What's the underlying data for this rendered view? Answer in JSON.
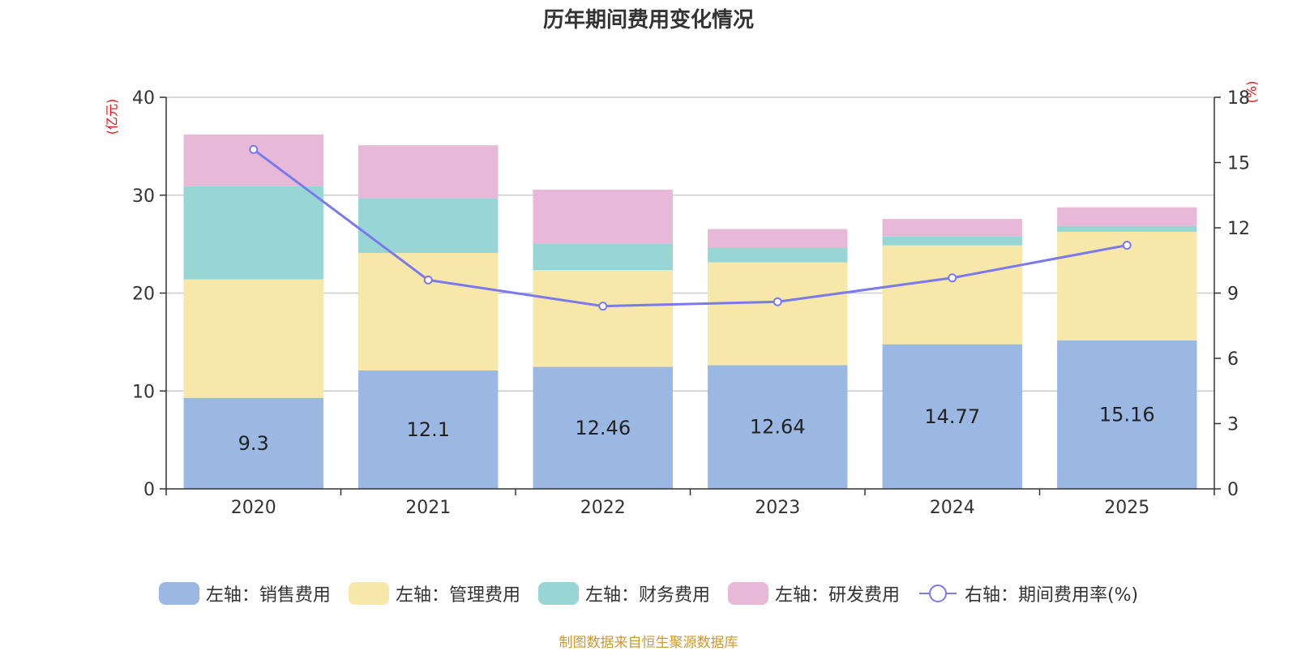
{
  "title": "历年期间费用变化情况",
  "left_unit": "(亿元)",
  "right_unit": "(%)",
  "source": "制图数据来自恒生聚源数据库",
  "colors": {
    "sales": "#9bb8e2",
    "admin": "#f7e7a8",
    "finance": "#98d5d5",
    "rd": "#e7b8d8",
    "rate": "#7a7aee",
    "grid": "#cccccc",
    "axis": "#333333"
  },
  "legend": [
    {
      "label": "左轴：销售费用",
      "color": "#9bb8e2",
      "kind": "bar"
    },
    {
      "label": "左轴：管理费用",
      "color": "#f7e7a8",
      "kind": "bar"
    },
    {
      "label": "左轴：财务费用",
      "color": "#98d5d5",
      "kind": "bar"
    },
    {
      "label": "左轴：研发费用",
      "color": "#e7b8d8",
      "kind": "bar"
    },
    {
      "label": "右轴：期间费用率(%)",
      "color": "#7a7aee",
      "kind": "line"
    }
  ],
  "chart_data": {
    "type": "bar",
    "stacked": true,
    "title": "历年期间费用变化情况",
    "categories": [
      "2020",
      "2021",
      "2022",
      "2023",
      "2024",
      "2025"
    ],
    "series": [
      {
        "name": "左轴：销售费用",
        "axis": "left",
        "values": [
          9.3,
          12.1,
          12.46,
          12.64,
          14.77,
          15.16
        ],
        "labels": [
          "9.3",
          "12.1",
          "12.46",
          "12.64",
          "14.77",
          "15.16"
        ]
      },
      {
        "name": "左轴：管理费用",
        "axis": "left",
        "values": [
          12.1,
          12.0,
          9.9,
          10.5,
          10.1,
          11.1
        ]
      },
      {
        "name": "左轴：财务费用",
        "axis": "left",
        "values": [
          9.5,
          5.6,
          2.7,
          1.5,
          0.9,
          0.6
        ]
      },
      {
        "name": "左轴：研发费用",
        "axis": "left",
        "values": [
          5.3,
          5.4,
          5.5,
          1.9,
          1.8,
          1.9
        ]
      },
      {
        "name": "右轴：期间费用率(%)",
        "axis": "right",
        "type": "line",
        "values": [
          15.6,
          9.6,
          8.4,
          8.6,
          9.7,
          11.2
        ]
      }
    ],
    "left_axis": {
      "label": "(亿元)",
      "ylim": [
        0,
        40
      ],
      "ticks": [
        0,
        10,
        20,
        30,
        40
      ]
    },
    "right_axis": {
      "label": "(%)",
      "ylim": [
        0,
        18
      ],
      "ticks": [
        0,
        3,
        6,
        9,
        12,
        15,
        18
      ]
    },
    "grid": true,
    "legend_position": "bottom"
  }
}
